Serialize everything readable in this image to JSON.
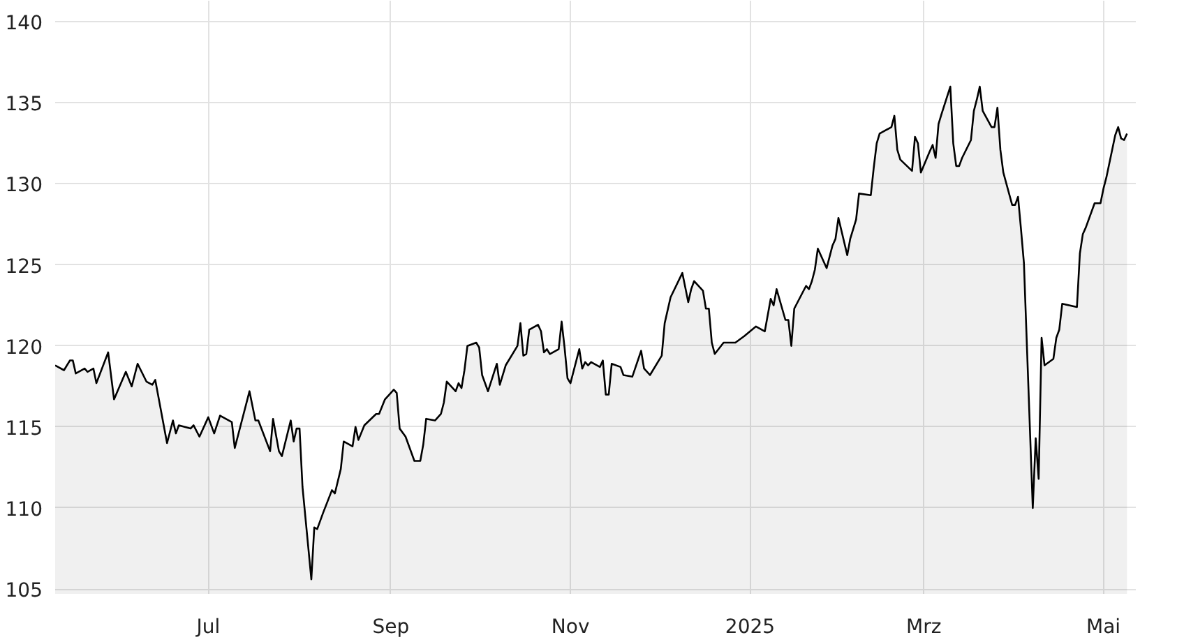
{
  "chart_data": {
    "type": "area",
    "color": "#000000",
    "grid": true,
    "xlim": [
      "2024-05-10",
      "2025-05-12"
    ],
    "ylim": [
      104.7,
      141.3
    ],
    "xticks": [
      {
        "value": "2024-07-01",
        "label": "Jul"
      },
      {
        "value": "2024-09-01",
        "label": "Sep"
      },
      {
        "value": "2024-11-01",
        "label": "Nov"
      },
      {
        "value": "2025-01-01",
        "label": "2025"
      },
      {
        "value": "2025-03-01",
        "label": "Mrz"
      },
      {
        "value": "2025-05-01",
        "label": "Mai"
      }
    ],
    "yticks": [
      105,
      110,
      115,
      120,
      125,
      130,
      135,
      140
    ],
    "x": [
      "2024-05-10",
      "2024-05-13",
      "2024-05-15",
      "2024-05-16",
      "2024-05-17",
      "2024-05-20",
      "2024-05-21",
      "2024-05-23",
      "2024-05-24",
      "2024-05-28",
      "2024-05-30",
      "2024-06-03",
      "2024-06-05",
      "2024-06-07",
      "2024-06-10",
      "2024-06-12",
      "2024-06-13",
      "2024-06-17",
      "2024-06-19",
      "2024-06-20",
      "2024-06-21",
      "2024-06-25",
      "2024-06-26",
      "2024-06-28",
      "2024-07-01",
      "2024-07-03",
      "2024-07-05",
      "2024-07-09",
      "2024-07-10",
      "2024-07-15",
      "2024-07-17",
      "2024-07-18",
      "2024-07-22",
      "2024-07-23",
      "2024-07-25",
      "2024-07-26",
      "2024-07-29",
      "2024-07-30",
      "2024-07-31",
      "2024-08-01",
      "2024-08-02",
      "2024-08-05",
      "2024-08-06",
      "2024-08-07",
      "2024-08-09",
      "2024-08-12",
      "2024-08-13",
      "2024-08-15",
      "2024-08-16",
      "2024-08-19",
      "2024-08-20",
      "2024-08-21",
      "2024-08-23",
      "2024-08-27",
      "2024-08-28",
      "2024-08-30",
      "2024-09-02",
      "2024-09-03",
      "2024-09-04",
      "2024-09-06",
      "2024-09-09",
      "2024-09-11",
      "2024-09-12",
      "2024-09-13",
      "2024-09-16",
      "2024-09-18",
      "2024-09-19",
      "2024-09-20",
      "2024-09-23",
      "2024-09-24",
      "2024-09-25",
      "2024-09-26",
      "2024-09-27",
      "2024-09-30",
      "2024-10-01",
      "2024-10-02",
      "2024-10-04",
      "2024-10-07",
      "2024-10-08",
      "2024-10-10",
      "2024-10-14",
      "2024-10-15",
      "2024-10-16",
      "2024-10-17",
      "2024-10-18",
      "2024-10-21",
      "2024-10-22",
      "2024-10-23",
      "2024-10-24",
      "2024-10-25",
      "2024-10-28",
      "2024-10-29",
      "2024-10-30",
      "2024-10-31",
      "2024-11-01",
      "2024-11-04",
      "2024-11-05",
      "2024-11-06",
      "2024-11-07",
      "2024-11-08",
      "2024-11-11",
      "2024-11-12",
      "2024-11-13",
      "2024-11-14",
      "2024-11-15",
      "2024-11-18",
      "2024-11-19",
      "2024-11-22",
      "2024-11-25",
      "2024-11-26",
      "2024-11-28",
      "2024-12-02",
      "2024-12-03",
      "2024-12-05",
      "2024-12-09",
      "2024-12-10",
      "2024-12-11",
      "2024-12-12",
      "2024-12-13",
      "2024-12-16",
      "2024-12-17",
      "2024-12-18",
      "2024-12-19",
      "2024-12-20",
      "2024-12-23",
      "2024-12-27",
      "2024-12-30",
      "2025-01-01",
      "2025-01-03",
      "2025-01-06",
      "2025-01-08",
      "2025-01-09",
      "2025-01-10",
      "2025-01-13",
      "2025-01-14",
      "2025-01-15",
      "2025-01-16",
      "2025-01-20",
      "2025-01-21",
      "2025-01-22",
      "2025-01-23",
      "2025-01-24",
      "2025-01-27",
      "2025-01-29",
      "2025-01-30",
      "2025-01-31",
      "2025-02-03",
      "2025-02-04",
      "2025-02-06",
      "2025-02-07",
      "2025-02-11",
      "2025-02-12",
      "2025-02-13",
      "2025-02-14",
      "2025-02-18",
      "2025-02-19",
      "2025-02-20",
      "2025-02-21",
      "2025-02-25",
      "2025-02-26",
      "2025-02-27",
      "2025-02-28",
      "2025-03-03",
      "2025-03-04",
      "2025-03-05",
      "2025-03-06",
      "2025-03-07",
      "2025-03-10",
      "2025-03-11",
      "2025-03-12",
      "2025-03-13",
      "2025-03-14",
      "2025-03-17",
      "2025-03-18",
      "2025-03-19",
      "2025-03-20",
      "2025-03-21",
      "2025-03-24",
      "2025-03-25",
      "2025-03-26",
      "2025-03-27",
      "2025-03-28",
      "2025-03-31",
      "2025-04-01",
      "2025-04-02",
      "2025-04-03",
      "2025-04-04",
      "2025-04-07",
      "2025-04-08",
      "2025-04-09",
      "2025-04-10",
      "2025-04-11",
      "2025-04-14",
      "2025-04-15",
      "2025-04-16",
      "2025-04-17",
      "2025-04-22",
      "2025-04-23",
      "2025-04-24",
      "2025-04-25",
      "2025-04-28",
      "2025-04-30",
      "2025-05-01",
      "2025-05-02",
      "2025-05-05",
      "2025-05-06",
      "2025-05-07",
      "2025-05-08",
      "2025-05-09"
    ],
    "values": [
      118.8,
      118.5,
      119.1,
      119.1,
      118.3,
      118.6,
      118.4,
      118.6,
      117.7,
      119.6,
      116.7,
      118.4,
      117.5,
      118.9,
      117.8,
      117.6,
      117.9,
      114.0,
      115.4,
      114.6,
      115.1,
      114.9,
      115.1,
      114.4,
      115.6,
      114.6,
      115.7,
      115.3,
      113.7,
      117.2,
      115.4,
      115.4,
      113.5,
      115.5,
      113.5,
      113.2,
      115.4,
      114.1,
      114.9,
      114.9,
      111.3,
      105.6,
      108.8,
      108.7,
      109.7,
      111.1,
      110.9,
      112.4,
      114.1,
      113.8,
      115.0,
      114.2,
      115.1,
      115.8,
      115.8,
      116.7,
      117.3,
      117.1,
      114.9,
      114.4,
      112.9,
      112.9,
      113.9,
      115.5,
      115.4,
      115.8,
      116.5,
      117.8,
      117.2,
      117.7,
      117.4,
      118.5,
      120.0,
      120.2,
      119.9,
      118.2,
      117.2,
      118.9,
      117.6,
      118.8,
      120.0,
      121.4,
      119.4,
      119.5,
      121.0,
      121.3,
      120.9,
      119.6,
      119.8,
      119.5,
      119.8,
      121.5,
      119.9,
      118.0,
      117.7,
      119.8,
      118.6,
      119.0,
      118.8,
      119.0,
      118.7,
      119.1,
      117.0,
      117.0,
      118.9,
      118.7,
      118.2,
      118.1,
      119.7,
      118.6,
      118.2,
      119.4,
      121.4,
      123.0,
      124.5,
      123.6,
      122.7,
      123.5,
      124.0,
      123.4,
      122.3,
      122.3,
      120.2,
      119.5,
      120.2,
      120.2,
      120.6,
      120.9,
      121.2,
      120.9,
      122.9,
      122.5,
      123.5,
      121.6,
      121.6,
      120.0,
      122.3,
      123.7,
      123.5,
      124.0,
      124.7,
      126.0,
      124.8,
      126.2,
      126.6,
      127.9,
      125.6,
      126.6,
      127.8,
      129.4,
      129.3,
      131.0,
      132.5,
      133.1,
      133.5,
      134.2,
      132.1,
      131.5,
      130.8,
      132.9,
      132.5,
      130.7,
      132.0,
      132.4,
      131.6,
      133.7,
      134.3,
      136.0,
      132.5,
      131.1,
      131.1,
      131.6,
      132.7,
      134.5,
      135.2,
      136.0,
      134.5,
      133.5,
      133.5,
      134.7,
      132.1,
      130.7,
      128.7,
      128.7,
      129.2,
      127.2,
      125.1,
      110.0,
      114.3,
      111.8,
      120.5,
      118.8,
      119.2,
      120.5,
      121.0,
      122.6,
      122.4,
      125.7,
      126.9,
      127.3,
      128.8,
      128.8,
      129.7,
      130.4,
      133.0,
      133.5,
      132.8,
      132.7,
      133.1
    ]
  }
}
